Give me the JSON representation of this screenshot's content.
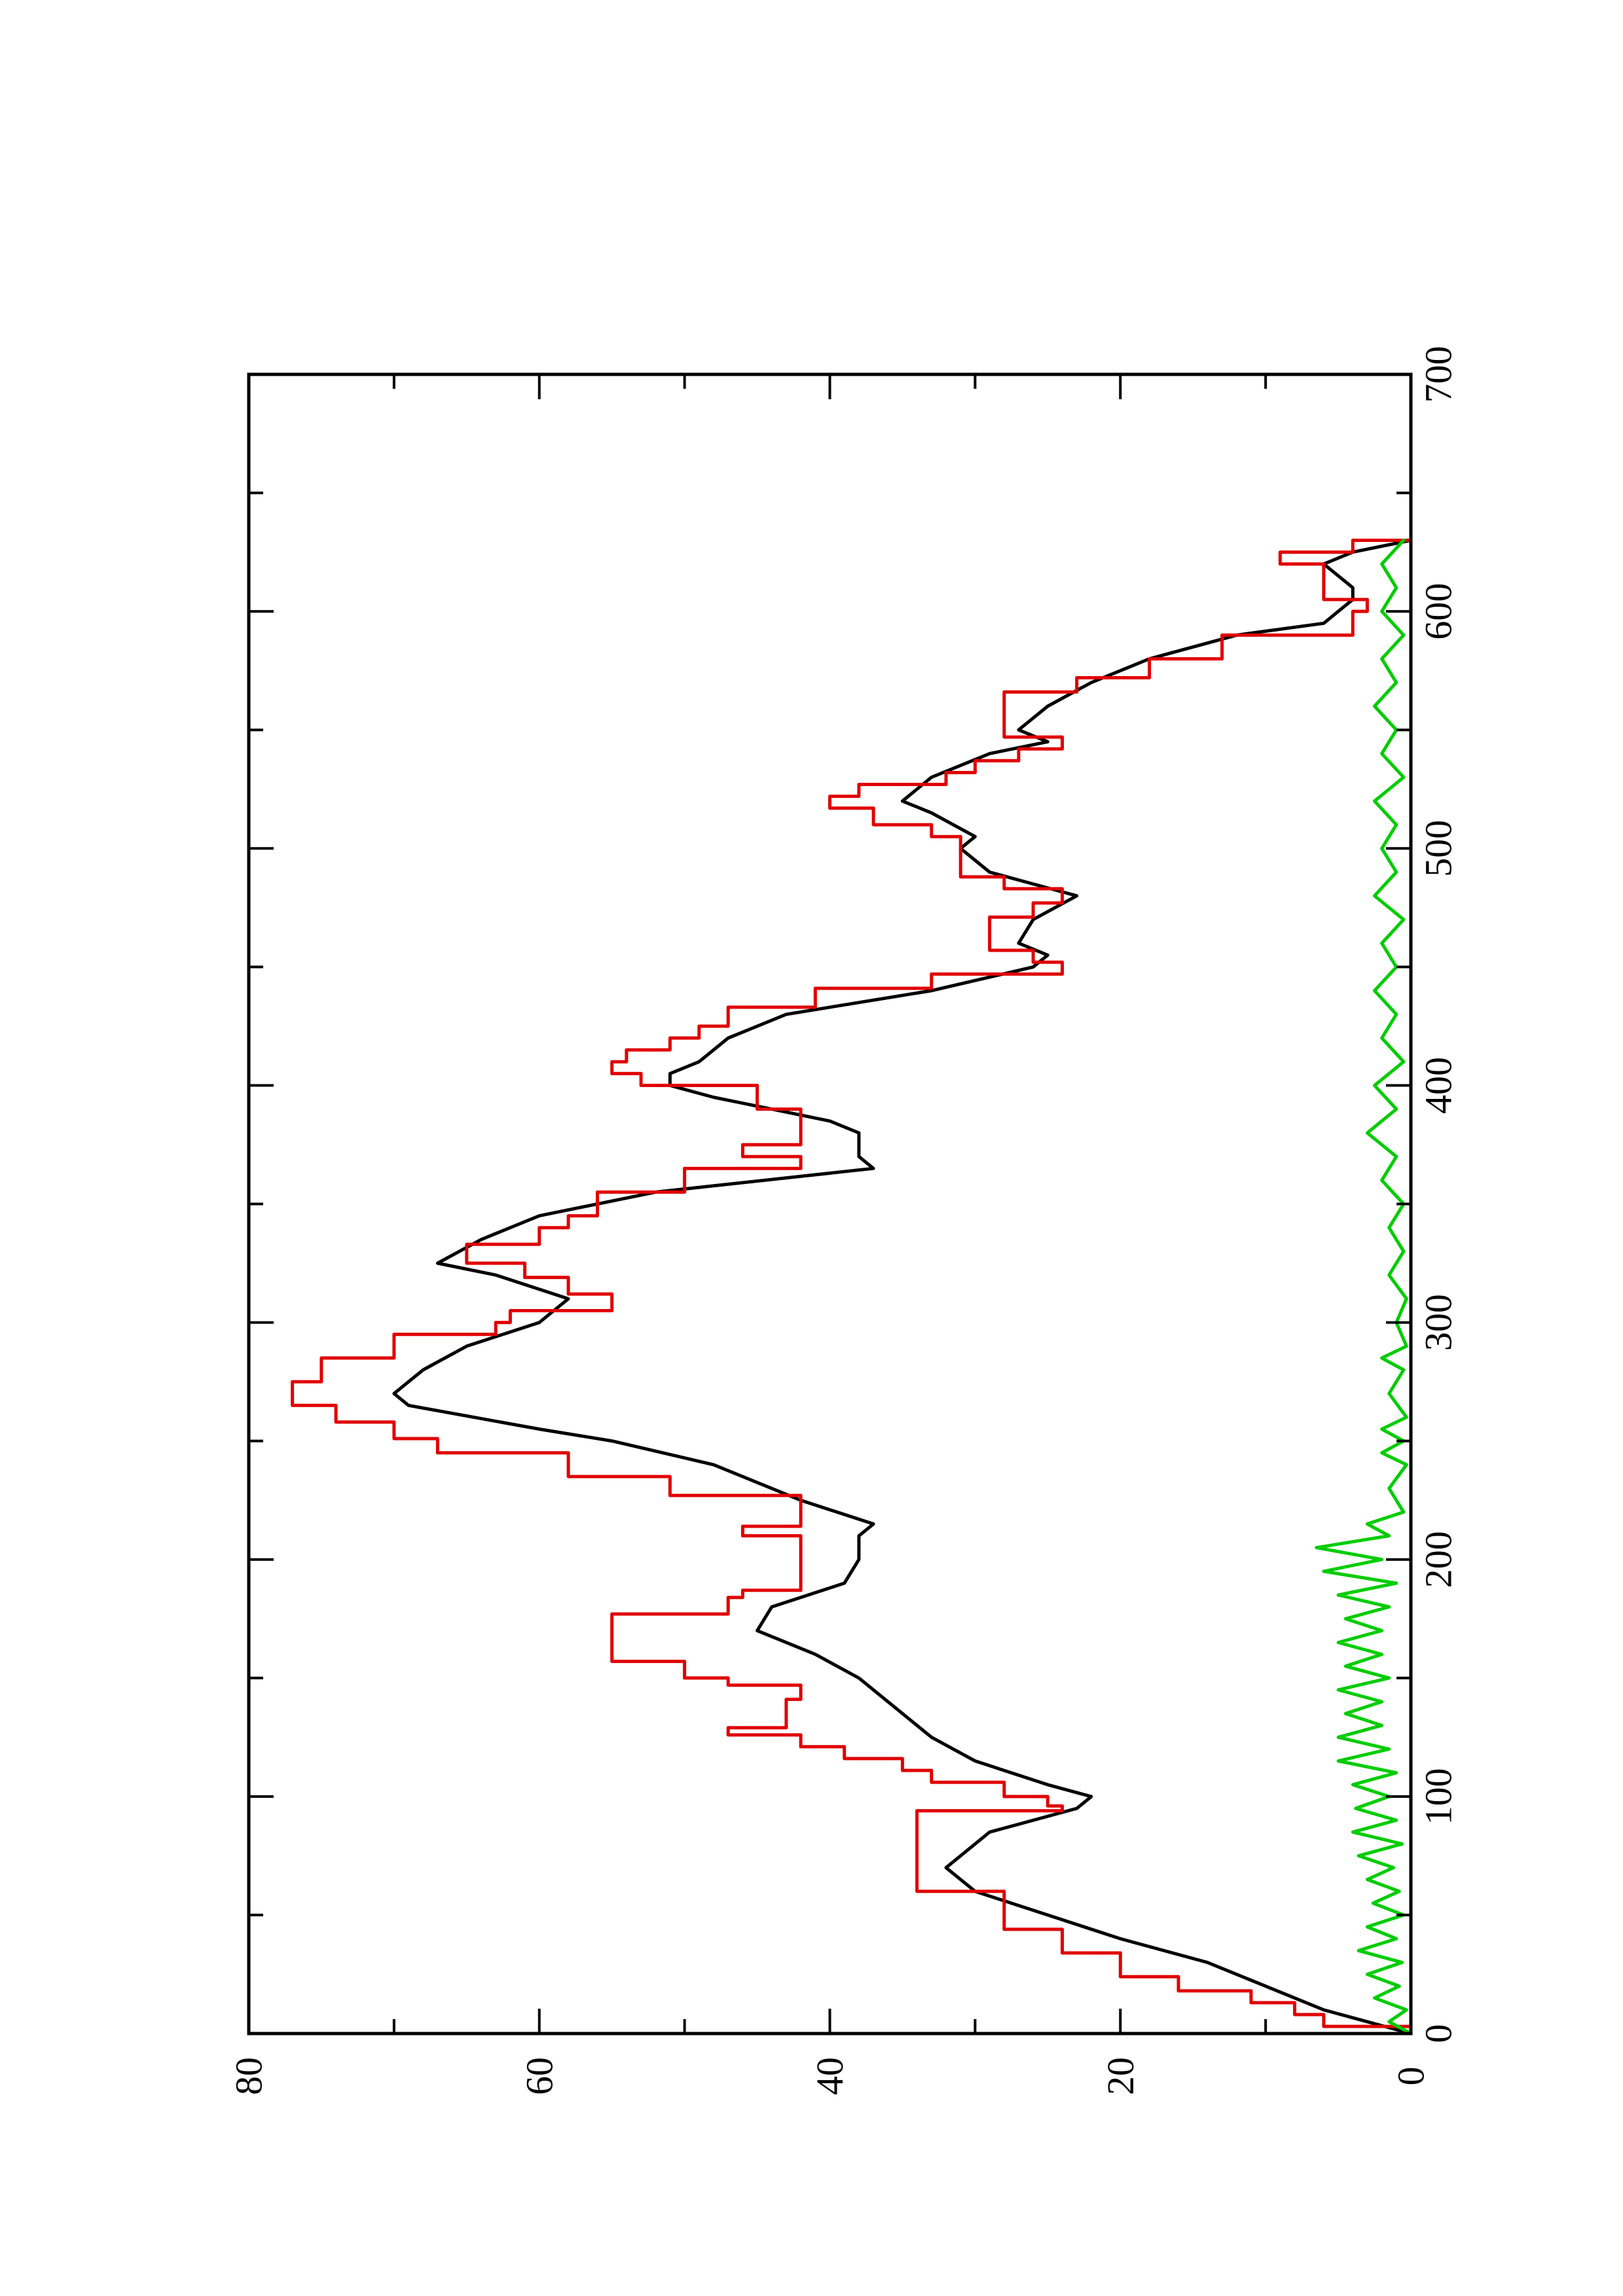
{
  "chart_data": {
    "type": "line",
    "orientation": "rotated 90 degrees counter-clockwise (x axis runs vertically, y axis horizontally)",
    "title": "",
    "xlabel": "",
    "ylabel": "",
    "xlim": [
      0,
      700
    ],
    "ylim": [
      0,
      80
    ],
    "x_ticks": [
      "0",
      "100",
      "200",
      "300",
      "400",
      "500",
      "600",
      "700"
    ],
    "y_ticks": [
      "0",
      "20",
      "40",
      "60",
      "80"
    ],
    "grid": false,
    "legend": "none",
    "series": [
      {
        "color": "#000000",
        "style": "smooth",
        "points": [
          [
            0,
            0
          ],
          [
            5,
            3
          ],
          [
            10,
            6
          ],
          [
            20,
            10
          ],
          [
            30,
            14
          ],
          [
            40,
            20
          ],
          [
            50,
            25
          ],
          [
            60,
            30
          ],
          [
            70,
            32
          ],
          [
            75,
            31
          ],
          [
            85,
            29
          ],
          [
            95,
            23
          ],
          [
            100,
            22
          ],
          [
            105,
            25
          ],
          [
            115,
            30
          ],
          [
            125,
            33
          ],
          [
            135,
            35
          ],
          [
            150,
            38
          ],
          [
            160,
            41
          ],
          [
            170,
            45
          ],
          [
            180,
            44
          ],
          [
            190,
            39
          ],
          [
            200,
            38
          ],
          [
            210,
            38
          ],
          [
            215,
            37
          ],
          [
            225,
            42
          ],
          [
            240,
            48
          ],
          [
            250,
            55
          ],
          [
            255,
            60
          ],
          [
            265,
            69
          ],
          [
            270,
            70
          ],
          [
            280,
            68
          ],
          [
            290,
            65
          ],
          [
            300,
            60
          ],
          [
            305,
            59
          ],
          [
            310,
            58
          ],
          [
            320,
            63
          ],
          [
            325,
            67
          ],
          [
            335,
            64
          ],
          [
            345,
            60
          ],
          [
            355,
            52
          ],
          [
            365,
            37
          ],
          [
            370,
            38
          ],
          [
            380,
            38
          ],
          [
            385,
            40
          ],
          [
            390,
            44
          ],
          [
            395,
            48
          ],
          [
            400,
            51
          ],
          [
            405,
            51
          ],
          [
            410,
            49
          ],
          [
            420,
            47
          ],
          [
            430,
            43
          ],
          [
            440,
            33
          ],
          [
            450,
            26
          ],
          [
            455,
            25
          ],
          [
            460,
            27
          ],
          [
            470,
            26
          ],
          [
            480,
            23
          ],
          [
            485,
            26
          ],
          [
            490,
            29
          ],
          [
            500,
            31
          ],
          [
            505,
            30
          ],
          [
            515,
            33
          ],
          [
            520,
            35
          ],
          [
            530,
            33
          ],
          [
            540,
            29
          ],
          [
            545,
            25
          ],
          [
            550,
            27
          ],
          [
            560,
            25
          ],
          [
            570,
            22
          ],
          [
            580,
            18
          ],
          [
            590,
            12
          ],
          [
            595,
            6
          ],
          [
            600,
            5
          ],
          [
            605,
            4
          ],
          [
            610,
            4
          ],
          [
            620,
            6
          ],
          [
            625,
            4
          ],
          [
            630,
            0
          ]
        ]
      },
      {
        "color": "#e00000",
        "style": "step",
        "points": [
          [
            0,
            0
          ],
          [
            3,
            6
          ],
          [
            8,
            8
          ],
          [
            13,
            11
          ],
          [
            18,
            16
          ],
          [
            24,
            20
          ],
          [
            34,
            24
          ],
          [
            44,
            28
          ],
          [
            56,
            28
          ],
          [
            60,
            34
          ],
          [
            90,
            34
          ],
          [
            94,
            24
          ],
          [
            96,
            25
          ],
          [
            100,
            28
          ],
          [
            106,
            33
          ],
          [
            111,
            35
          ],
          [
            116,
            39
          ],
          [
            121,
            42
          ],
          [
            126,
            47
          ],
          [
            129,
            43
          ],
          [
            141,
            42
          ],
          [
            147,
            47
          ],
          [
            150,
            50
          ],
          [
            157,
            55
          ],
          [
            167,
            55
          ],
          [
            177,
            47
          ],
          [
            184,
            46
          ],
          [
            187,
            42
          ],
          [
            205,
            42
          ],
          [
            210,
            46
          ],
          [
            214,
            42
          ],
          [
            227,
            51
          ],
          [
            235,
            58
          ],
          [
            245,
            67
          ],
          [
            251,
            70
          ],
          [
            258,
            74
          ],
          [
            265,
            77
          ],
          [
            275,
            75
          ],
          [
            285,
            70
          ],
          [
            295,
            63
          ],
          [
            300,
            62
          ],
          [
            305,
            55
          ],
          [
            312,
            58
          ],
          [
            319,
            61
          ],
          [
            325,
            65
          ],
          [
            333,
            60
          ],
          [
            340,
            58
          ],
          [
            345,
            56
          ],
          [
            355,
            50
          ],
          [
            365,
            42
          ],
          [
            370,
            46
          ],
          [
            375,
            42
          ],
          [
            385,
            42
          ],
          [
            390,
            45
          ],
          [
            400,
            53
          ],
          [
            405,
            55
          ],
          [
            410,
            54
          ],
          [
            415,
            51
          ],
          [
            420,
            49
          ],
          [
            425,
            47
          ],
          [
            433,
            41
          ],
          [
            441,
            33
          ],
          [
            447,
            24
          ],
          [
            452,
            26
          ],
          [
            457,
            29
          ],
          [
            465,
            29
          ],
          [
            471,
            26
          ],
          [
            477,
            24
          ],
          [
            483,
            28
          ],
          [
            488,
            31
          ],
          [
            498,
            31
          ],
          [
            505,
            33
          ],
          [
            510,
            37
          ],
          [
            517,
            40
          ],
          [
            522,
            38
          ],
          [
            527,
            32
          ],
          [
            532,
            30
          ],
          [
            537,
            27
          ],
          [
            542,
            24
          ],
          [
            547,
            28
          ],
          [
            560,
            28
          ],
          [
            566,
            23
          ],
          [
            572,
            18
          ],
          [
            580,
            13
          ],
          [
            590,
            4
          ],
          [
            600,
            3
          ],
          [
            605,
            6
          ],
          [
            612,
            6
          ],
          [
            620,
            9
          ],
          [
            625,
            4
          ],
          [
            630,
            0
          ]
        ]
      },
      {
        "color": "#00cc00",
        "style": "noise",
        "points": [
          [
            0,
            0
          ],
          [
            5,
            1.5
          ],
          [
            10,
            0.3
          ],
          [
            15,
            2.5
          ],
          [
            20,
            0.8
          ],
          [
            25,
            3
          ],
          [
            30,
            0.6
          ],
          [
            35,
            3.6
          ],
          [
            40,
            1
          ],
          [
            45,
            3
          ],
          [
            50,
            0.5
          ],
          [
            55,
            2.6
          ],
          [
            60,
            0.8
          ],
          [
            65,
            3
          ],
          [
            70,
            1.2
          ],
          [
            75,
            3.6
          ],
          [
            80,
            0.6
          ],
          [
            85,
            4
          ],
          [
            90,
            1
          ],
          [
            95,
            3.8
          ],
          [
            100,
            1.5
          ],
          [
            105,
            4
          ],
          [
            110,
            1
          ],
          [
            115,
            5
          ],
          [
            120,
            1.5
          ],
          [
            125,
            5
          ],
          [
            130,
            2
          ],
          [
            135,
            4.5
          ],
          [
            140,
            2
          ],
          [
            145,
            5
          ],
          [
            150,
            1.5
          ],
          [
            155,
            4.5
          ],
          [
            160,
            2
          ],
          [
            165,
            5
          ],
          [
            170,
            2
          ],
          [
            175,
            4.5
          ],
          [
            180,
            1.5
          ],
          [
            185,
            5
          ],
          [
            190,
            1
          ],
          [
            195,
            6
          ],
          [
            200,
            2
          ],
          [
            205,
            6.5
          ],
          [
            210,
            1.5
          ],
          [
            215,
            3
          ],
          [
            220,
            0.5
          ],
          [
            230,
            1.5
          ],
          [
            240,
            0.3
          ],
          [
            245,
            2
          ],
          [
            250,
            0.5
          ],
          [
            255,
            2
          ],
          [
            260,
            0.3
          ],
          [
            270,
            1.5
          ],
          [
            280,
            0.5
          ],
          [
            285,
            2
          ],
          [
            290,
            0.3
          ],
          [
            300,
            1
          ],
          [
            310,
            0.3
          ],
          [
            320,
            1.5
          ],
          [
            330,
            0.5
          ],
          [
            340,
            1.5
          ],
          [
            350,
            0.5
          ],
          [
            360,
            2
          ],
          [
            370,
            1
          ],
          [
            380,
            3
          ],
          [
            390,
            1
          ],
          [
            400,
            2.5
          ],
          [
            410,
            0.5
          ],
          [
            420,
            2
          ],
          [
            430,
            1
          ],
          [
            440,
            2.5
          ],
          [
            450,
            1
          ],
          [
            460,
            2
          ],
          [
            470,
            0.5
          ],
          [
            480,
            2.5
          ],
          [
            490,
            1
          ],
          [
            500,
            2
          ],
          [
            510,
            1
          ],
          [
            520,
            2.5
          ],
          [
            530,
            0.5
          ],
          [
            540,
            2
          ],
          [
            550,
            1
          ],
          [
            560,
            2.5
          ],
          [
            570,
            1
          ],
          [
            580,
            2
          ],
          [
            590,
            0.5
          ],
          [
            600,
            2
          ],
          [
            610,
            1
          ],
          [
            620,
            2
          ],
          [
            630,
            0.5
          ]
        ]
      }
    ]
  }
}
